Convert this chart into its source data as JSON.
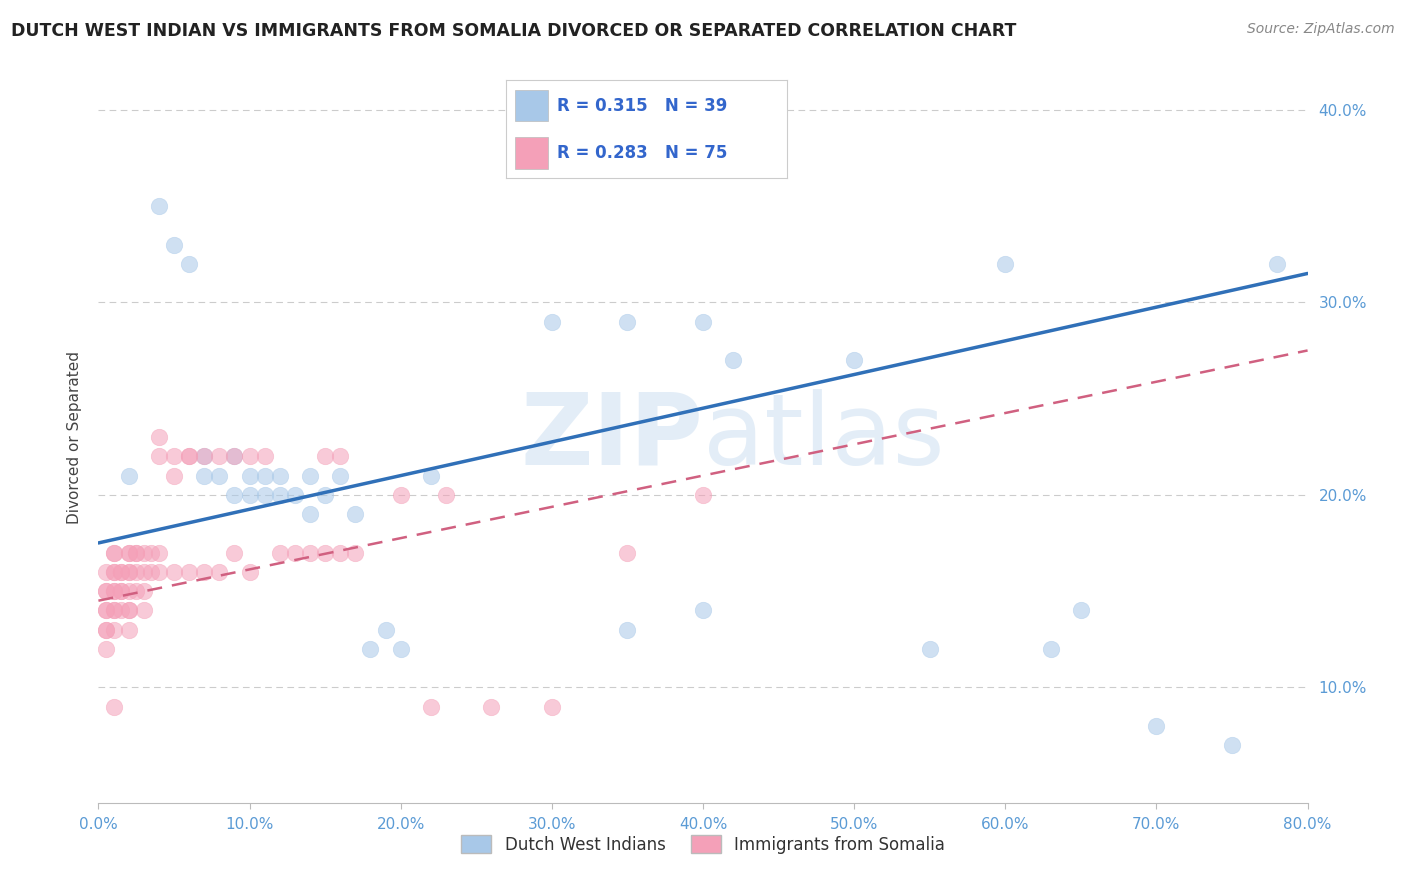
{
  "title": "DUTCH WEST INDIAN VS IMMIGRANTS FROM SOMALIA DIVORCED OR SEPARATED CORRELATION CHART",
  "source": "Source: ZipAtlas.com",
  "ylabel": "Divorced or Separated",
  "legend_label1": "Dutch West Indians",
  "legend_label2": "Immigrants from Somalia",
  "R1": 0.315,
  "N1": 39,
  "R2": 0.283,
  "N2": 75,
  "color_blue": "#a8c8e8",
  "color_pink": "#f4a0b8",
  "color_blue_line": "#3070b8",
  "color_pink_line": "#d06080",
  "watermark_color": "#c8dcf0",
  "xlim": [
    0.0,
    0.8
  ],
  "ylim": [
    0.04,
    0.42
  ],
  "blue_line_x0": 0.0,
  "blue_line_y0": 0.175,
  "blue_line_x1": 0.8,
  "blue_line_y1": 0.315,
  "pink_line_x0": 0.0,
  "pink_line_y0": 0.145,
  "pink_line_x1": 0.8,
  "pink_line_y1": 0.275,
  "blue_x": [
    0.02,
    0.04,
    0.05,
    0.06,
    0.07,
    0.07,
    0.08,
    0.09,
    0.09,
    0.1,
    0.1,
    0.11,
    0.11,
    0.12,
    0.12,
    0.13,
    0.14,
    0.14,
    0.15,
    0.16,
    0.17,
    0.18,
    0.19,
    0.2,
    0.22,
    0.3,
    0.35,
    0.35,
    0.4,
    0.4,
    0.42,
    0.5,
    0.55,
    0.6,
    0.63,
    0.65,
    0.7,
    0.75,
    0.78
  ],
  "blue_y": [
    0.21,
    0.35,
    0.33,
    0.32,
    0.22,
    0.21,
    0.21,
    0.22,
    0.2,
    0.2,
    0.21,
    0.21,
    0.2,
    0.21,
    0.2,
    0.2,
    0.21,
    0.19,
    0.2,
    0.21,
    0.19,
    0.12,
    0.13,
    0.12,
    0.21,
    0.29,
    0.29,
    0.13,
    0.14,
    0.29,
    0.27,
    0.27,
    0.12,
    0.32,
    0.12,
    0.14,
    0.08,
    0.07,
    0.32
  ],
  "pink_x": [
    0.005,
    0.005,
    0.005,
    0.005,
    0.005,
    0.005,
    0.005,
    0.005,
    0.01,
    0.01,
    0.01,
    0.01,
    0.01,
    0.01,
    0.01,
    0.01,
    0.01,
    0.01,
    0.015,
    0.015,
    0.015,
    0.015,
    0.015,
    0.02,
    0.02,
    0.02,
    0.02,
    0.02,
    0.02,
    0.02,
    0.02,
    0.025,
    0.025,
    0.025,
    0.025,
    0.03,
    0.03,
    0.03,
    0.03,
    0.035,
    0.035,
    0.04,
    0.04,
    0.04,
    0.04,
    0.05,
    0.05,
    0.05,
    0.06,
    0.06,
    0.06,
    0.07,
    0.07,
    0.08,
    0.08,
    0.09,
    0.09,
    0.1,
    0.1,
    0.11,
    0.12,
    0.13,
    0.14,
    0.15,
    0.15,
    0.16,
    0.16,
    0.17,
    0.2,
    0.22,
    0.23,
    0.26,
    0.3,
    0.35,
    0.4
  ],
  "pink_y": [
    0.16,
    0.15,
    0.15,
    0.14,
    0.14,
    0.13,
    0.13,
    0.12,
    0.17,
    0.17,
    0.16,
    0.16,
    0.15,
    0.15,
    0.14,
    0.14,
    0.13,
    0.09,
    0.16,
    0.16,
    0.15,
    0.15,
    0.14,
    0.17,
    0.17,
    0.16,
    0.16,
    0.15,
    0.14,
    0.14,
    0.13,
    0.17,
    0.17,
    0.16,
    0.15,
    0.17,
    0.16,
    0.15,
    0.14,
    0.17,
    0.16,
    0.23,
    0.22,
    0.17,
    0.16,
    0.22,
    0.21,
    0.16,
    0.22,
    0.22,
    0.16,
    0.22,
    0.16,
    0.22,
    0.16,
    0.22,
    0.17,
    0.22,
    0.16,
    0.22,
    0.17,
    0.17,
    0.17,
    0.22,
    0.17,
    0.22,
    0.17,
    0.17,
    0.2,
    0.09,
    0.2,
    0.09,
    0.09,
    0.17,
    0.2
  ]
}
